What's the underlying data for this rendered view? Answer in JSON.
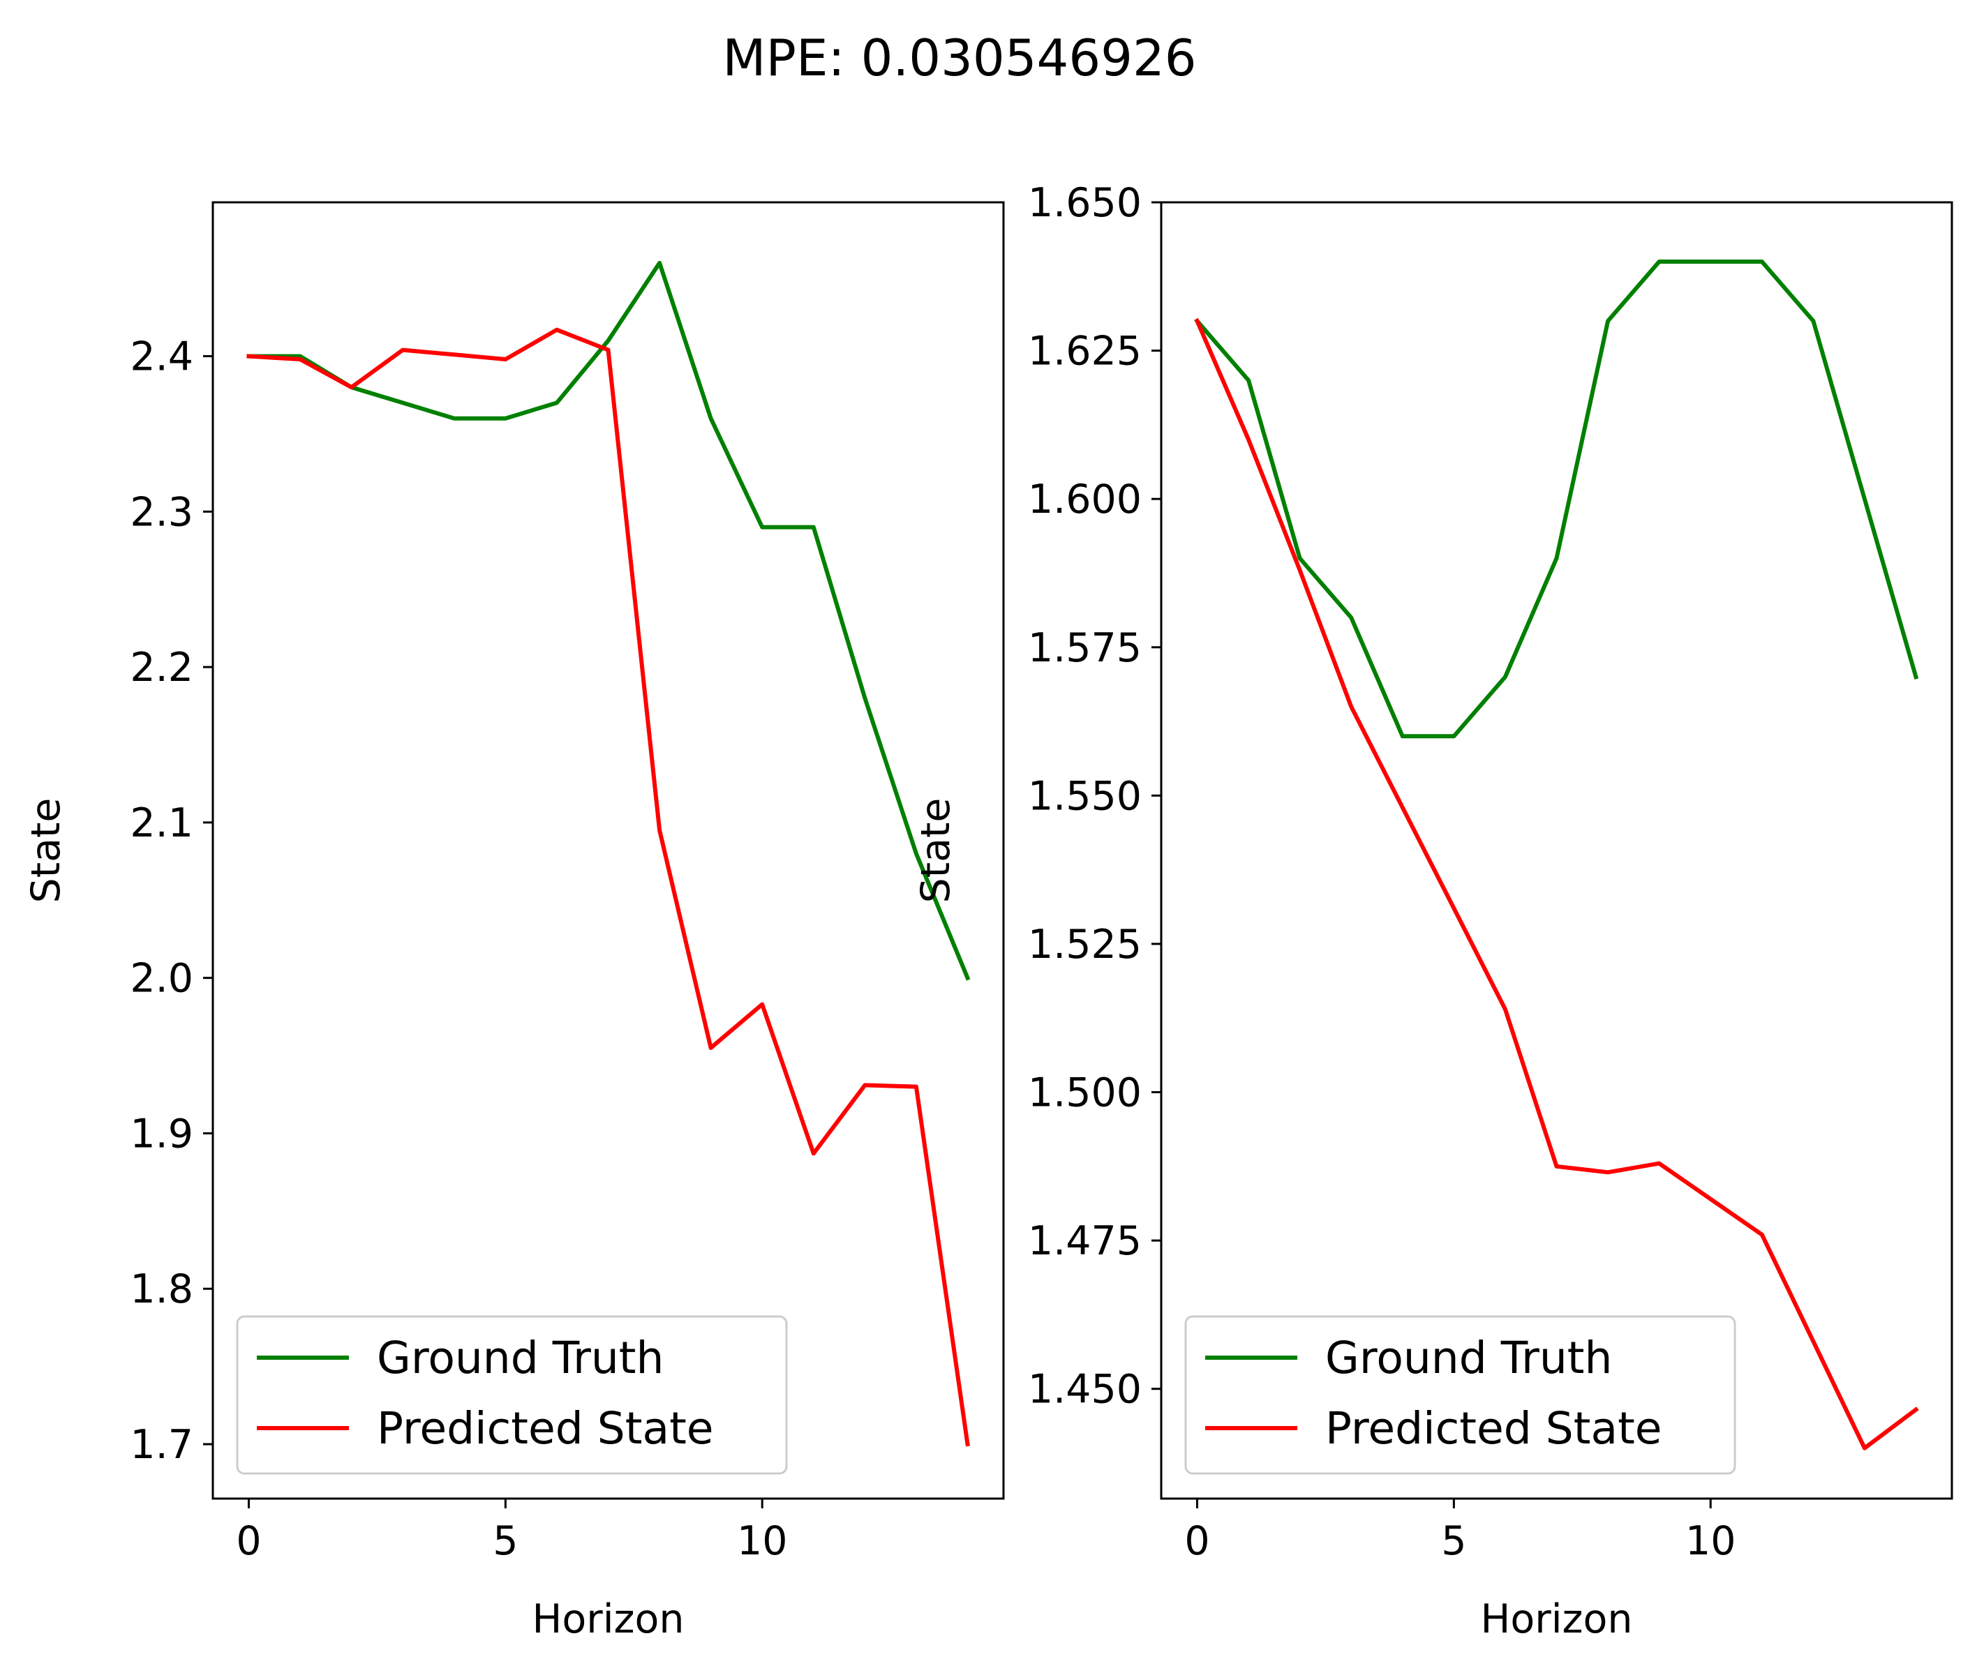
{
  "figure": {
    "suptitle": "MPE: 0.030546926"
  },
  "colors": {
    "ground_truth": "#008000",
    "predicted": "#ff0000",
    "axes": "#000000",
    "background": "#ffffff"
  },
  "chart_data": [
    {
      "type": "line",
      "xlabel": "Horizon",
      "ylabel": "State",
      "xlim": [
        -0.7,
        14.7
      ],
      "ylim": [
        1.665,
        2.499
      ],
      "xticks": [
        0,
        5,
        10
      ],
      "xtick_labels": [
        "0",
        "5",
        "10"
      ],
      "yticks": [
        1.7,
        1.8,
        1.9,
        2.0,
        2.1,
        2.2,
        2.3,
        2.4
      ],
      "ytick_labels": [
        "1.7",
        "1.8",
        "1.9",
        "2.0",
        "2.1",
        "2.2",
        "2.3",
        "2.4"
      ],
      "grid": false,
      "legend_position": "lower-left",
      "x": [
        0,
        1,
        2,
        3,
        4,
        5,
        6,
        7,
        8,
        9,
        10,
        11,
        12,
        13,
        14
      ],
      "series": [
        {
          "name": "Ground Truth",
          "color": "#008000",
          "values": [
            2.4,
            2.4,
            2.38,
            2.37,
            2.36,
            2.36,
            2.37,
            2.41,
            2.46,
            2.36,
            2.29,
            2.29,
            2.18,
            2.08,
            2.0
          ]
        },
        {
          "name": "Predicted State",
          "color": "#ff0000",
          "values": [
            2.4,
            2.398,
            2.38,
            2.404,
            2.401,
            2.398,
            2.417,
            2.404,
            2.095,
            1.955,
            1.983,
            1.887,
            1.931,
            1.93,
            1.7
          ]
        }
      ]
    },
    {
      "type": "line",
      "xlabel": "Horizon",
      "ylabel": "State",
      "xlim": [
        -0.7,
        14.7
      ],
      "ylim": [
        1.4315,
        1.65
      ],
      "xticks": [
        0,
        5,
        10
      ],
      "xtick_labels": [
        "0",
        "5",
        "10"
      ],
      "yticks": [
        1.45,
        1.475,
        1.5,
        1.525,
        1.55,
        1.575,
        1.6,
        1.625,
        1.65
      ],
      "ytick_labels": [
        "1.450",
        "1.475",
        "1.500",
        "1.525",
        "1.550",
        "1.575",
        "1.600",
        "1.625",
        "1.650"
      ],
      "grid": false,
      "legend_position": "lower-left",
      "x": [
        0,
        1,
        2,
        3,
        4,
        5,
        6,
        7,
        8,
        9,
        10,
        11,
        12,
        13,
        14
      ],
      "series": [
        {
          "name": "Ground Truth",
          "color": "#008000",
          "values": [
            1.63,
            1.62,
            1.59,
            1.58,
            1.56,
            1.56,
            1.57,
            1.59,
            1.63,
            1.64,
            1.64,
            1.64,
            1.63,
            1.6,
            1.57
          ]
        },
        {
          "name": "Predicted State",
          "color": "#ff0000",
          "values": [
            1.63,
            1.61,
            1.588,
            1.565,
            1.548,
            1.531,
            1.514,
            1.4875,
            1.4865,
            1.488,
            1.482,
            1.476,
            1.458,
            1.44,
            1.4465
          ]
        }
      ]
    }
  ]
}
